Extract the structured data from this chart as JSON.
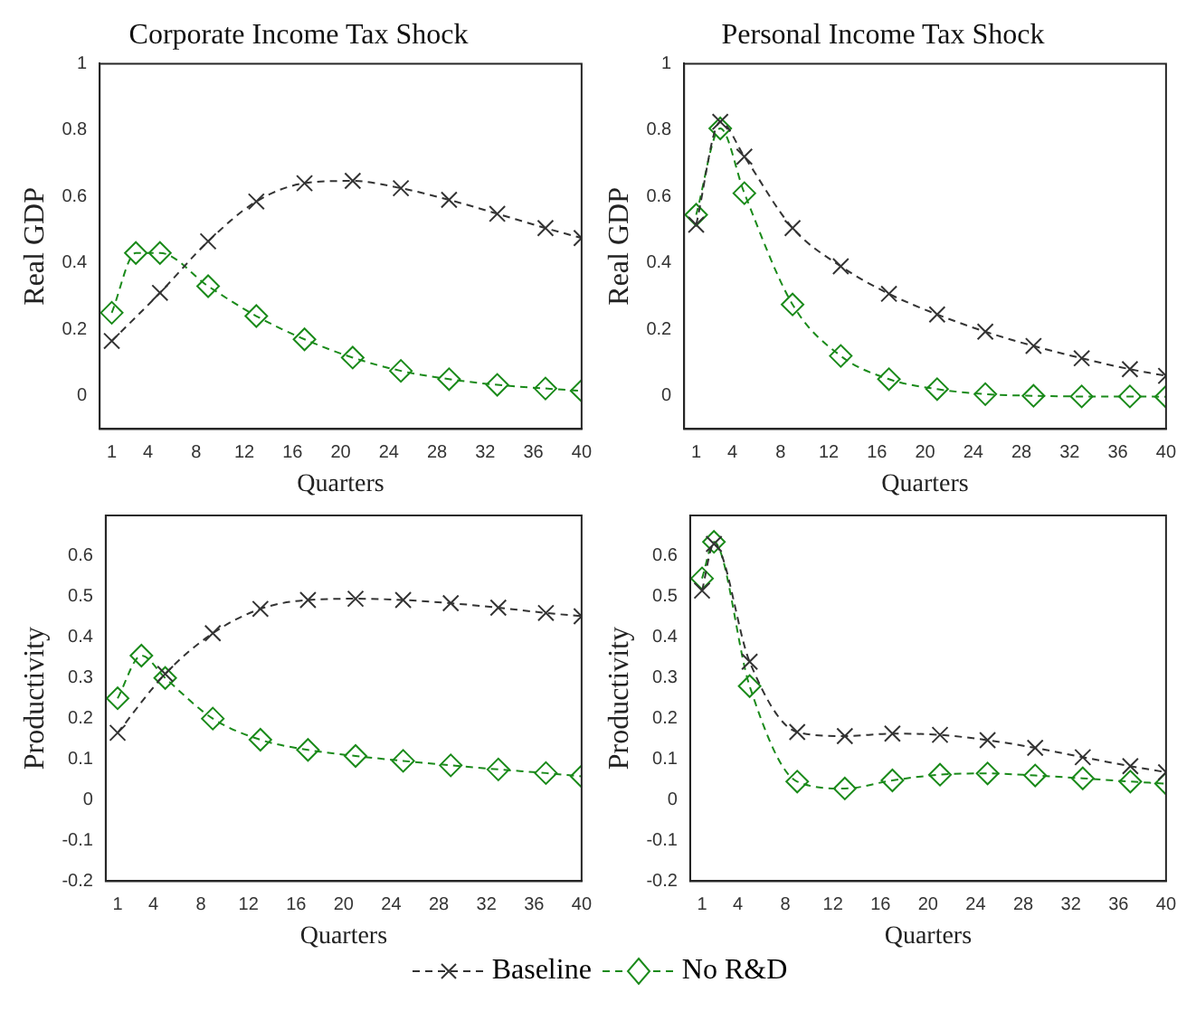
{
  "chart_data": [
    {
      "type": "line",
      "title": "Corporate Income Tax Shock",
      "xlabel": "Quarters",
      "ylabel": "Real GDP",
      "xlim": [
        0,
        40
      ],
      "xticks": [
        1,
        4,
        8,
        12,
        16,
        20,
        24,
        28,
        32,
        36,
        40
      ],
      "ylim": [
        -0.1,
        1
      ],
      "yticks": [
        0,
        0.2,
        0.4,
        0.6,
        0.8,
        1
      ],
      "grid": false,
      "line_style": "dashed",
      "series": [
        {
          "color": "#333333",
          "marker": "cross",
          "x": [
            1,
            5,
            9,
            13,
            17,
            21,
            25,
            29,
            33,
            37,
            40
          ],
          "values": [
            0.165,
            0.31,
            0.465,
            0.585,
            0.64,
            0.647,
            0.625,
            0.59,
            0.548,
            0.505,
            0.475
          ]
        },
        {
          "color": "#1a8a1a",
          "marker": "diamond",
          "x": [
            1,
            3,
            5,
            9,
            13,
            17,
            21,
            25,
            29,
            33,
            37,
            40
          ],
          "values": [
            0.25,
            0.43,
            0.43,
            0.33,
            0.24,
            0.17,
            0.115,
            0.075,
            0.05,
            0.033,
            0.022,
            0.015
          ]
        }
      ]
    },
    {
      "type": "line",
      "title": "Personal Income Tax Shock",
      "xlabel": "Quarters",
      "ylabel": "Real GDP",
      "xlim": [
        0,
        40
      ],
      "xticks": [
        1,
        4,
        8,
        12,
        16,
        20,
        24,
        28,
        32,
        36,
        40
      ],
      "ylim": [
        -0.1,
        1
      ],
      "yticks": [
        0,
        0.2,
        0.4,
        0.6,
        0.8,
        1
      ],
      "grid": false,
      "line_style": "dashed",
      "series": [
        {
          "color": "#333333",
          "marker": "cross",
          "x": [
            1,
            3,
            5,
            9,
            13,
            17,
            21,
            25,
            29,
            33,
            37,
            40
          ],
          "values": [
            0.515,
            0.825,
            0.72,
            0.505,
            0.39,
            0.307,
            0.245,
            0.193,
            0.15,
            0.113,
            0.08,
            0.06
          ]
        },
        {
          "color": "#1a8a1a",
          "marker": "diamond",
          "x": [
            1,
            3,
            5,
            9,
            13,
            17,
            21,
            25,
            29,
            33,
            37,
            40
          ],
          "values": [
            0.545,
            0.805,
            0.61,
            0.275,
            0.12,
            0.05,
            0.02,
            0.005,
            0,
            -0.002,
            -0.002,
            -0.003
          ]
        }
      ]
    },
    {
      "type": "line",
      "xlabel": "Quarters",
      "ylabel": "Productivity",
      "xlim": [
        0,
        40
      ],
      "xticks": [
        1,
        4,
        8,
        12,
        16,
        20,
        24,
        28,
        32,
        36,
        40
      ],
      "ylim": [
        -0.2,
        0.7
      ],
      "yticks": [
        -0.2,
        -0.1,
        0,
        0.1,
        0.2,
        0.3,
        0.4,
        0.5,
        0.6
      ],
      "grid": false,
      "line_style": "dashed",
      "series": [
        {
          "color": "#333333",
          "marker": "cross",
          "x": [
            1,
            5,
            9,
            13,
            17,
            21,
            25,
            29,
            33,
            37,
            40
          ],
          "values": [
            0.165,
            0.31,
            0.41,
            0.47,
            0.492,
            0.495,
            0.492,
            0.484,
            0.473,
            0.46,
            0.452
          ]
        },
        {
          "color": "#1a8a1a",
          "marker": "diamond",
          "x": [
            1,
            3,
            5,
            9,
            13,
            17,
            21,
            25,
            29,
            33,
            37,
            40
          ],
          "values": [
            0.25,
            0.355,
            0.3,
            0.2,
            0.148,
            0.123,
            0.108,
            0.096,
            0.085,
            0.075,
            0.066,
            0.058
          ]
        }
      ]
    },
    {
      "type": "line",
      "xlabel": "Quarters",
      "ylabel": "Productivity",
      "xlim": [
        0,
        40
      ],
      "xticks": [
        1,
        4,
        8,
        12,
        16,
        20,
        24,
        28,
        32,
        36,
        40
      ],
      "ylim": [
        -0.2,
        0.7
      ],
      "yticks": [
        -0.2,
        -0.1,
        0,
        0.1,
        0.2,
        0.3,
        0.4,
        0.5,
        0.6
      ],
      "grid": false,
      "line_style": "dashed",
      "legend": "bottom",
      "series": [
        {
          "name": "Baseline",
          "color": "#333333",
          "marker": "cross",
          "x": [
            1,
            2,
            5,
            9,
            13,
            17,
            21,
            25,
            29,
            33,
            37,
            40
          ],
          "values": [
            0.515,
            0.63,
            0.34,
            0.167,
            0.157,
            0.163,
            0.16,
            0.147,
            0.128,
            0.105,
            0.083,
            0.068
          ]
        },
        {
          "name": "No R&D",
          "color": "#1a8a1a",
          "marker": "diamond",
          "x": [
            1,
            2,
            5,
            9,
            13,
            17,
            21,
            25,
            29,
            33,
            37,
            40
          ],
          "values": [
            0.545,
            0.635,
            0.28,
            0.045,
            0.028,
            0.048,
            0.062,
            0.065,
            0.06,
            0.053,
            0.045,
            0.04
          ]
        }
      ]
    }
  ]
}
